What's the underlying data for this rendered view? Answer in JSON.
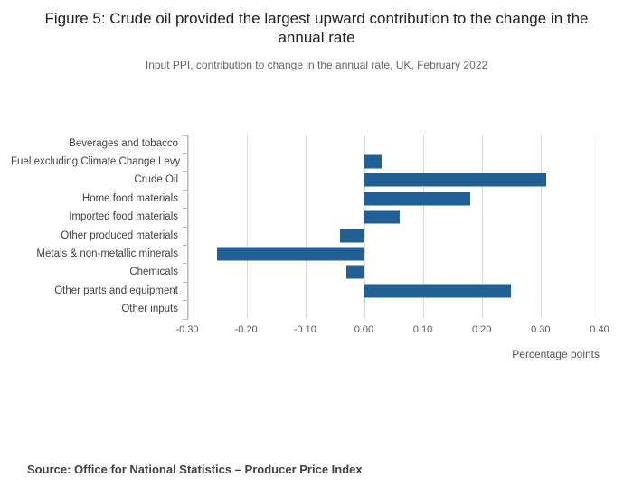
{
  "title": "Figure 5: Crude oil provided the largest upward contribution to the change in the annual rate",
  "subtitle": "Input PPI, contribution to change in the annual rate, UK, February 2022",
  "source": "Source: Office for National Statistics – Producer Price Index",
  "chart_data": {
    "type": "bar",
    "orientation": "horizontal",
    "title": "Figure 5: Crude oil provided the largest upward contribution to the change in the annual rate",
    "subtitle": "Input PPI, contribution to change in the annual rate, UK, February 2022",
    "categories": [
      "Beverages and tobacco",
      "Fuel excluding Climate Change Levy",
      "Crude Oil",
      "Home food materials",
      "Imported food materials",
      "Other produced materials",
      "Metals & non-metallic minerals",
      "Chemicals",
      "Other parts and equipment",
      "Other inputs"
    ],
    "values": [
      0,
      0.03,
      0.31,
      0.18,
      0.06,
      -0.04,
      -0.25,
      -0.03,
      0.25,
      0
    ],
    "xlabel": "Percentage points",
    "ylabel": "",
    "xlim": [
      -0.3,
      0.4
    ],
    "xticks": [
      -0.3,
      -0.2,
      -0.1,
      0.0,
      0.1,
      0.2,
      0.3,
      0.4
    ],
    "xtick_labels": [
      "-0.30",
      "-0.20",
      "-0.10",
      "0.00",
      "0.10",
      "0.20",
      "0.30",
      "0.40"
    ],
    "bar_color": "#206095",
    "grid": true,
    "legend": "none"
  }
}
